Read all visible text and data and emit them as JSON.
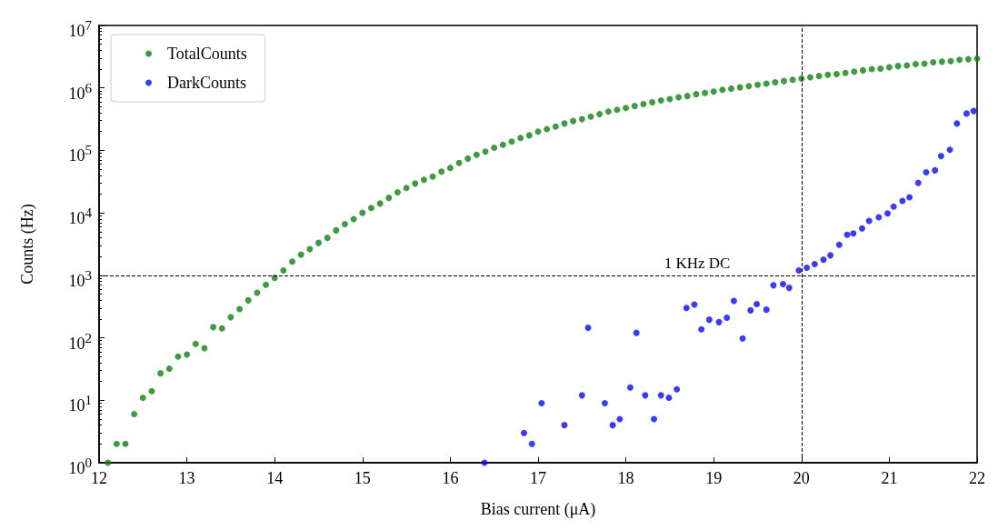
{
  "chart_data": {
    "type": "scatter",
    "xlabel": "Bias current (μA)",
    "ylabel": "Counts (Hz)",
    "log": "y",
    "grid": false,
    "legend": "top left",
    "marker": "circle",
    "xlim": [
      12,
      22
    ],
    "xticks": [
      12,
      13,
      14,
      15,
      16,
      17,
      18,
      19,
      20,
      21,
      22
    ],
    "ylim": [
      1,
      10000000
    ],
    "yticks": [
      {
        "value": 1,
        "label": "10$^{0}$"
      },
      {
        "value": 10,
        "label": "10$^{1}$"
      },
      {
        "value": 100,
        "label": "10$^{2}$"
      },
      {
        "value": 1000,
        "label": "10$^{3}$"
      },
      {
        "value": 10000,
        "label": "10$^{4}$"
      },
      {
        "value": 100000,
        "label": "10$^{5}$"
      },
      {
        "value": 1000000,
        "label": "10$^{6}$"
      },
      {
        "value": 10000000,
        "label": "10$^{7}$"
      }
    ],
    "ref_lines": [
      {
        "axis": "y",
        "value": 1000,
        "label": "1 KHz DC",
        "line_style": "dashed",
        "color": "#000000"
      },
      {
        "axis": "x",
        "value": 20,
        "label": null,
        "line_style": "dashed",
        "color": "#000000"
      }
    ],
    "series": [
      {
        "name": "TotalCounts",
        "color": "#117f11",
        "x": [
          12.1,
          12.2,
          12.3,
          12.4,
          12.5,
          12.6,
          12.7,
          12.8,
          12.9,
          13.0,
          13.1,
          13.2,
          13.3,
          13.4,
          13.5,
          13.6,
          13.7,
          13.8,
          13.9,
          14.0,
          14.1,
          14.2,
          14.3,
          14.4,
          14.5,
          14.6,
          14.7,
          14.8,
          14.9,
          15.0,
          15.1,
          15.2,
          15.3,
          15.4,
          15.5,
          15.6,
          15.7,
          15.8,
          15.9,
          16.0,
          16.1,
          16.2,
          16.3,
          16.4,
          16.5,
          16.6,
          16.7,
          16.8,
          16.9,
          17.0,
          17.1,
          17.2,
          17.3,
          17.4,
          17.5,
          17.6,
          17.7,
          17.8,
          17.9,
          18.0,
          18.1,
          18.2,
          18.3,
          18.4,
          18.5,
          18.6,
          18.7,
          18.8,
          18.9,
          19.0,
          19.1,
          19.2,
          19.3,
          19.4,
          19.5,
          19.6,
          19.7,
          19.8,
          19.9,
          20.0,
          20.1,
          20.2,
          20.3,
          20.4,
          20.5,
          20.6,
          20.7,
          20.8,
          20.9,
          21.0,
          21.1,
          21.2,
          21.3,
          21.4,
          21.5,
          21.6,
          21.7,
          21.8,
          21.9,
          22.0
        ],
        "values": [
          1,
          2,
          2,
          6,
          11,
          14,
          27,
          32,
          50,
          54,
          80,
          68,
          148,
          141,
          214,
          288,
          398,
          525,
          708,
          912,
          1200,
          1660,
          2140,
          2630,
          3310,
          3980,
          5250,
          6610,
          7940,
          10000,
          12000,
          14100,
          17400,
          21400,
          25100,
          29500,
          33900,
          38000,
          45700,
          52500,
          63100,
          74100,
          85100,
          95500,
          110000,
          123000,
          138000,
          158000,
          174000,
          200000,
          219000,
          240000,
          269000,
          295000,
          316000,
          347000,
          380000,
          417000,
          447000,
          479000,
          513000,
          550000,
          589000,
          631000,
          661000,
          708000,
          741000,
          794000,
          832000,
          871000,
          933000,
          977000,
          1020000,
          1070000,
          1120000,
          1170000,
          1230000,
          1290000,
          1350000,
          1410000,
          1480000,
          1550000,
          1620000,
          1660000,
          1740000,
          1820000,
          1910000,
          2000000,
          2040000,
          2140000,
          2240000,
          2290000,
          2400000,
          2450000,
          2570000,
          2630000,
          2690000,
          2820000,
          2880000,
          2950000
        ]
      },
      {
        "name": "DarkCounts",
        "color": "#0a0af0",
        "x": [
          16.39,
          16.84,
          16.93,
          17.04,
          17.3,
          17.5,
          17.57,
          17.76,
          17.85,
          17.93,
          18.05,
          18.12,
          18.22,
          18.32,
          18.4,
          18.49,
          18.58,
          18.69,
          18.78,
          18.86,
          18.95,
          19.06,
          19.15,
          19.23,
          19.33,
          19.42,
          19.49,
          19.6,
          19.68,
          19.79,
          19.86,
          19.97,
          20.06,
          20.15,
          20.25,
          20.33,
          20.43,
          20.52,
          20.59,
          20.69,
          20.77,
          20.88,
          20.98,
          21.05,
          21.15,
          21.23,
          21.33,
          21.42,
          21.52,
          21.59,
          21.69,
          21.77,
          21.88,
          21.96
        ],
        "values": [
          1,
          3,
          2,
          9,
          4,
          12,
          145,
          9,
          4,
          5,
          16,
          120,
          12,
          5,
          12,
          11,
          15,
          300,
          340,
          137,
          195,
          178,
          209,
          389,
          98,
          275,
          347,
          282,
          692,
          724,
          631,
          1200,
          1320,
          1510,
          1780,
          2090,
          3090,
          4470,
          4680,
          5620,
          7410,
          8510,
          9770,
          12600,
          15500,
          17800,
          30200,
          44700,
          47900,
          81300,
          102000,
          269000,
          389000,
          427000
        ]
      }
    ]
  }
}
